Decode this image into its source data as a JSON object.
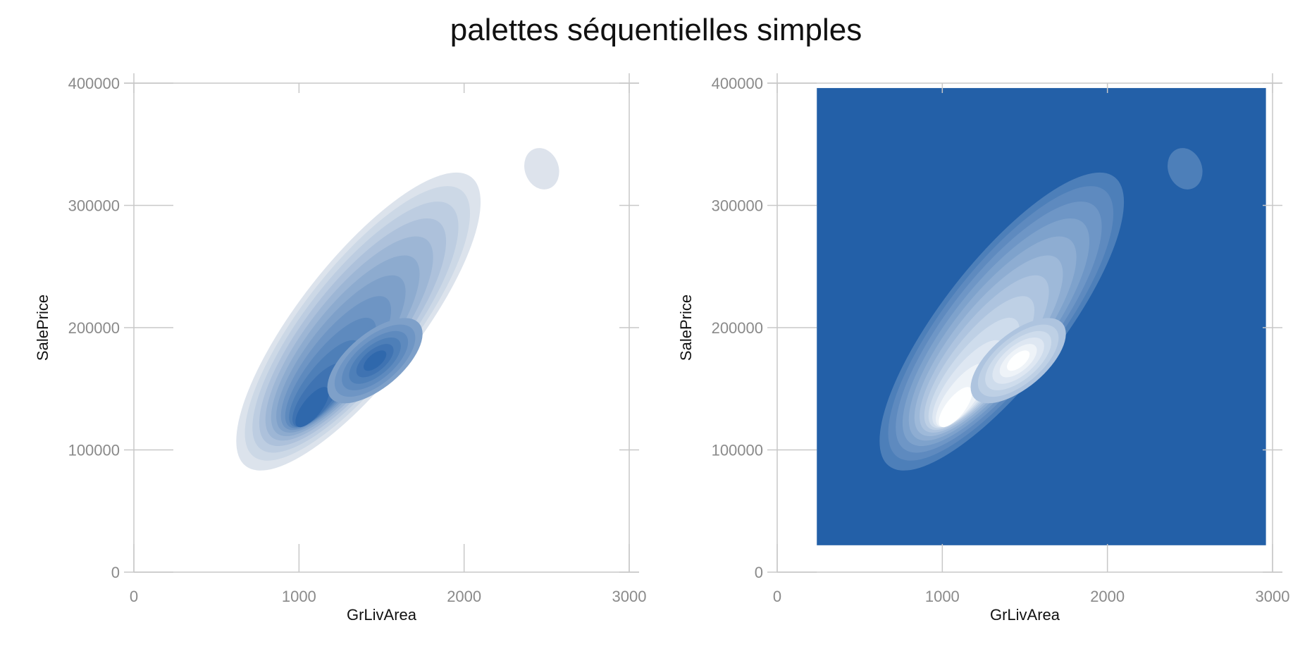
{
  "title": "palettes séquentielles simples",
  "colors": {
    "axis": "#c8c8c8",
    "tick_text": "#8a8a8a",
    "label_text": "#111111",
    "blue": "#2360a8",
    "light": "#eceef2",
    "white": "#ffffff"
  },
  "chart_data": [
    {
      "type": "kde2d",
      "palette": "sequential light-to-blue",
      "xlabel": "GrLivArea",
      "ylabel": "SalePrice",
      "xlim": [
        0,
        3000
      ],
      "ylim": [
        0,
        400000
      ],
      "xticks": [
        0,
        1000,
        2000,
        3000
      ],
      "yticks": [
        0,
        100000,
        200000,
        300000,
        400000
      ],
      "x_tick_labels": [
        "0",
        "1000",
        "2000",
        "3000"
      ],
      "y_tick_labels": [
        "0",
        "100000",
        "200000",
        "300000",
        "400000"
      ],
      "levels": 12,
      "modes": [
        {
          "x": 1080,
          "y": 135000
        },
        {
          "x": 1460,
          "y": 173000
        }
      ],
      "background_fill": false
    },
    {
      "type": "kde2d",
      "palette": "sequential blue-to-white",
      "xlabel": "GrLivArea",
      "ylabel": "SalePrice",
      "xlim": [
        0,
        3000
      ],
      "ylim": [
        0,
        400000
      ],
      "xticks": [
        0,
        1000,
        2000,
        3000
      ],
      "yticks": [
        0,
        100000,
        200000,
        300000,
        400000
      ],
      "x_tick_labels": [
        "0",
        "1000",
        "2000",
        "3000"
      ],
      "y_tick_labels": [
        "0",
        "100000",
        "200000",
        "300000",
        "400000"
      ],
      "levels": 12,
      "modes": [
        {
          "x": 1080,
          "y": 135000
        },
        {
          "x": 1460,
          "y": 173000
        }
      ],
      "background_fill": true,
      "background_extent": {
        "x": [
          240,
          2960
        ],
        "y": [
          22000,
          396000
        ]
      }
    }
  ]
}
